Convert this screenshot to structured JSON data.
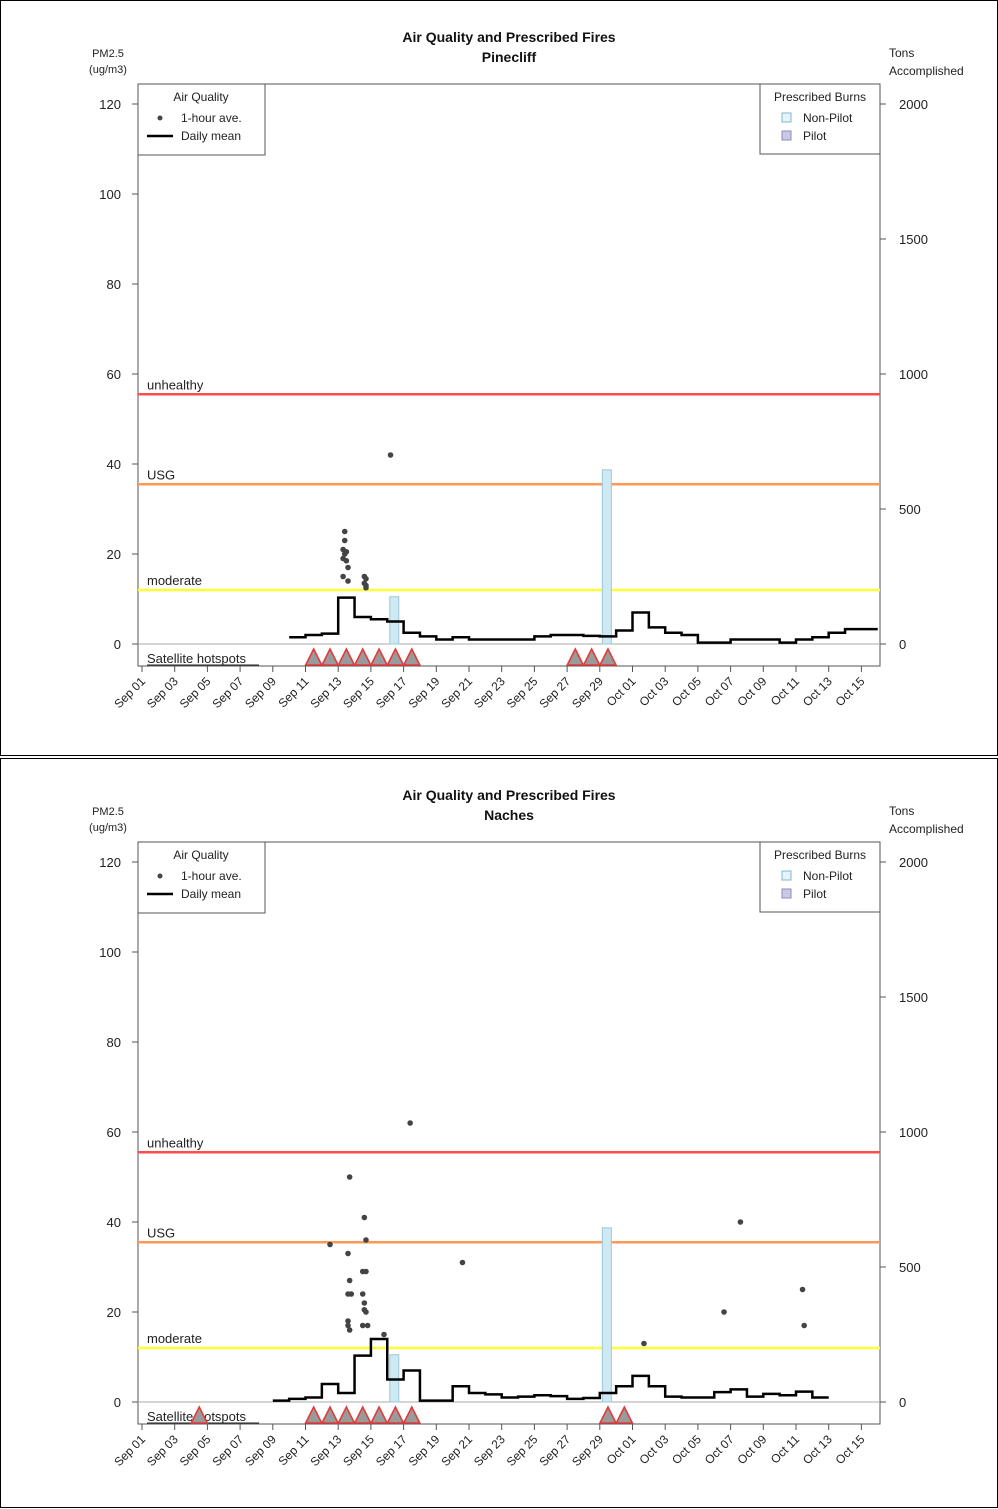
{
  "chart_data": [
    {
      "type": "line",
      "title": "Air Quality and Prescribed Fires",
      "subtitle": "Pinecliff",
      "ylabel": "PM2.5\n(ug/m3)",
      "y2label": "Tons\nAccomplished",
      "ylim": [
        0,
        120
      ],
      "y2lim": [
        0,
        2000
      ],
      "yticks": [
        0,
        20,
        40,
        60,
        80,
        100,
        120
      ],
      "y2ticks": [
        0,
        500,
        1000,
        1500,
        2000
      ],
      "x_ticks": [
        "Sep 01",
        "Sep 03",
        "Sep 05",
        "Sep 07",
        "Sep 09",
        "Sep 11",
        "Sep 13",
        "Sep 15",
        "Sep 17",
        "Sep 19",
        "Sep 21",
        "Sep 23",
        "Sep 25",
        "Sep 27",
        "Sep 29",
        "Oct 01",
        "Oct 03",
        "Oct 05",
        "Oct 07",
        "Oct 09",
        "Oct 11",
        "Oct 13",
        "Oct 15"
      ],
      "thresholds": [
        {
          "label": "unhealthy",
          "value": 55.5,
          "color": "#ff4d4d"
        },
        {
          "label": "USG",
          "value": 35.5,
          "color": "#ff9955"
        },
        {
          "label": "moderate",
          "value": 12,
          "color": "#ffff33"
        }
      ],
      "legend_air": {
        "title": "Air Quality",
        "items": [
          "1-hour ave.",
          "Daily mean"
        ],
        "position": "top-left"
      },
      "legend_burns": {
        "title": "Prescribed Burns",
        "items": [
          "Non-Pilot",
          "Pilot"
        ],
        "position": "top-right"
      },
      "hotspot_label": "Satellite hotspots",
      "daily_mean": [
        {
          "x": 9,
          "y": 1.5
        },
        {
          "x": 10,
          "y": 2
        },
        {
          "x": 11,
          "y": 2.3
        },
        {
          "x": 12,
          "y": 10.3
        },
        {
          "x": 13,
          "y": 6
        },
        {
          "x": 14,
          "y": 5.5
        },
        {
          "x": 15,
          "y": 5
        },
        {
          "x": 16,
          "y": 2.5
        },
        {
          "x": 17,
          "y": 1.7
        },
        {
          "x": 18,
          "y": 1
        },
        {
          "x": 19,
          "y": 1.5
        },
        {
          "x": 20,
          "y": 1
        },
        {
          "x": 21,
          "y": 1
        },
        {
          "x": 22,
          "y": 1
        },
        {
          "x": 23,
          "y": 1
        },
        {
          "x": 24,
          "y": 1.7
        },
        {
          "x": 25,
          "y": 2
        },
        {
          "x": 26,
          "y": 2
        },
        {
          "x": 27,
          "y": 1.8
        },
        {
          "x": 28,
          "y": 1.7
        },
        {
          "x": 29,
          "y": 3
        },
        {
          "x": 30,
          "y": 7
        },
        {
          "x": 31,
          "y": 3.7
        },
        {
          "x": 32,
          "y": 2.5
        },
        {
          "x": 33,
          "y": 2
        },
        {
          "x": 34,
          "y": 0.3
        },
        {
          "x": 35,
          "y": 0.3
        },
        {
          "x": 36,
          "y": 1
        },
        {
          "x": 37,
          "y": 1
        },
        {
          "x": 38,
          "y": 1
        },
        {
          "x": 39,
          "y": 0.3
        },
        {
          "x": 40,
          "y": 1
        },
        {
          "x": 41,
          "y": 1.5
        },
        {
          "x": 42,
          "y": 2.5
        },
        {
          "x": 43,
          "y": 3.3
        },
        {
          "x": 44,
          "y": 3.3
        }
      ],
      "hourly_points": [
        {
          "x": 12.4,
          "y": 25
        },
        {
          "x": 12.4,
          "y": 23
        },
        {
          "x": 12.3,
          "y": 21
        },
        {
          "x": 12.5,
          "y": 20.5
        },
        {
          "x": 12.4,
          "y": 20
        },
        {
          "x": 12.3,
          "y": 19
        },
        {
          "x": 12.5,
          "y": 18.5
        },
        {
          "x": 12.6,
          "y": 17
        },
        {
          "x": 12.3,
          "y": 15
        },
        {
          "x": 12.6,
          "y": 14
        },
        {
          "x": 13.6,
          "y": 15
        },
        {
          "x": 13.7,
          "y": 14.5
        },
        {
          "x": 13.6,
          "y": 13.5
        },
        {
          "x": 13.7,
          "y": 13
        },
        {
          "x": 13.7,
          "y": 12.5
        },
        {
          "x": 15.2,
          "y": 42
        }
      ],
      "burns": [
        {
          "x": 15.4,
          "tons": 175,
          "type": "Non-Pilot"
        },
        {
          "x": 28.4,
          "tons": 645,
          "type": "Non-Pilot"
        }
      ],
      "hotspots": [
        10.5,
        11.5,
        12.5,
        13.5,
        14.5,
        15.5,
        16.5,
        26.5,
        27.5,
        28.5
      ]
    },
    {
      "type": "line",
      "title": "Air Quality and Prescribed Fires",
      "subtitle": "Naches",
      "ylabel": "PM2.5\n(ug/m3)",
      "y2label": "Tons\nAccomplished",
      "ylim": [
        0,
        120
      ],
      "y2lim": [
        0,
        2000
      ],
      "yticks": [
        0,
        20,
        40,
        60,
        80,
        100,
        120
      ],
      "y2ticks": [
        0,
        500,
        1000,
        1500,
        2000
      ],
      "x_ticks": [
        "Sep 01",
        "Sep 03",
        "Sep 05",
        "Sep 07",
        "Sep 09",
        "Sep 11",
        "Sep 13",
        "Sep 15",
        "Sep 17",
        "Sep 19",
        "Sep 21",
        "Sep 23",
        "Sep 25",
        "Sep 27",
        "Sep 29",
        "Oct 01",
        "Oct 03",
        "Oct 05",
        "Oct 07",
        "Oct 09",
        "Oct 11",
        "Oct 13",
        "Oct 15"
      ],
      "thresholds": [
        {
          "label": "unhealthy",
          "value": 55.5,
          "color": "#ff4d4d"
        },
        {
          "label": "USG",
          "value": 35.5,
          "color": "#ff9955"
        },
        {
          "label": "moderate",
          "value": 12,
          "color": "#ffff33"
        }
      ],
      "legend_air": {
        "title": "Air Quality",
        "items": [
          "1-hour ave.",
          "Daily mean"
        ],
        "position": "top-left"
      },
      "legend_burns": {
        "title": "Prescribed Burns",
        "items": [
          "Non-Pilot",
          "Pilot"
        ],
        "position": "top-right"
      },
      "hotspot_label": "Satellite hotspots",
      "daily_mean": [
        {
          "x": 8,
          "y": 0.3
        },
        {
          "x": 9,
          "y": 0.7
        },
        {
          "x": 10,
          "y": 1
        },
        {
          "x": 11,
          "y": 4
        },
        {
          "x": 12,
          "y": 2
        },
        {
          "x": 13,
          "y": 10.3
        },
        {
          "x": 14,
          "y": 14
        },
        {
          "x": 15,
          "y": 5
        },
        {
          "x": 16,
          "y": 7
        },
        {
          "x": 17,
          "y": 0.3
        },
        {
          "x": 18,
          "y": 0.3
        },
        {
          "x": 19,
          "y": 3.5
        },
        {
          "x": 20,
          "y": 2
        },
        {
          "x": 21,
          "y": 1.7
        },
        {
          "x": 22,
          "y": 1
        },
        {
          "x": 23,
          "y": 1.2
        },
        {
          "x": 24,
          "y": 1.5
        },
        {
          "x": 25,
          "y": 1.3
        },
        {
          "x": 26,
          "y": 0.7
        },
        {
          "x": 27,
          "y": 0.9
        },
        {
          "x": 28,
          "y": 2
        },
        {
          "x": 29,
          "y": 3.5
        },
        {
          "x": 30,
          "y": 5.8
        },
        {
          "x": 31,
          "y": 3.5
        },
        {
          "x": 32,
          "y": 1.2
        },
        {
          "x": 33,
          "y": 1
        },
        {
          "x": 34,
          "y": 1
        },
        {
          "x": 35,
          "y": 2.2
        },
        {
          "x": 36,
          "y": 2.8
        },
        {
          "x": 37,
          "y": 1.2
        },
        {
          "x": 38,
          "y": 1.8
        },
        {
          "x": 39,
          "y": 1.5
        },
        {
          "x": 40,
          "y": 2.3
        },
        {
          "x": 41,
          "y": 1
        }
      ],
      "hourly_points": [
        {
          "x": 11.5,
          "y": 35
        },
        {
          "x": 12.7,
          "y": 50
        },
        {
          "x": 12.6,
          "y": 33
        },
        {
          "x": 12.7,
          "y": 27
        },
        {
          "x": 12.6,
          "y": 24
        },
        {
          "x": 12.8,
          "y": 24
        },
        {
          "x": 12.6,
          "y": 18
        },
        {
          "x": 12.6,
          "y": 17
        },
        {
          "x": 12.7,
          "y": 16
        },
        {
          "x": 13.6,
          "y": 41
        },
        {
          "x": 13.7,
          "y": 36
        },
        {
          "x": 13.5,
          "y": 29
        },
        {
          "x": 13.7,
          "y": 29
        },
        {
          "x": 13.5,
          "y": 24
        },
        {
          "x": 13.6,
          "y": 22
        },
        {
          "x": 13.6,
          "y": 20.5
        },
        {
          "x": 13.7,
          "y": 20
        },
        {
          "x": 13.5,
          "y": 17
        },
        {
          "x": 13.8,
          "y": 17
        },
        {
          "x": 14.8,
          "y": 15
        },
        {
          "x": 16.4,
          "y": 62
        },
        {
          "x": 19.6,
          "y": 31
        },
        {
          "x": 30.7,
          "y": 13
        },
        {
          "x": 35.6,
          "y": 20
        },
        {
          "x": 36.6,
          "y": 40
        },
        {
          "x": 40.4,
          "y": 25
        },
        {
          "x": 40.5,
          "y": 17
        }
      ],
      "burns": [
        {
          "x": 15.4,
          "tons": 175,
          "type": "Non-Pilot"
        },
        {
          "x": 28.4,
          "tons": 645,
          "type": "Non-Pilot"
        }
      ],
      "hotspots": [
        3.5,
        10.5,
        11.5,
        12.5,
        13.5,
        14.5,
        15.5,
        16.5,
        28.5,
        29.5
      ]
    }
  ]
}
